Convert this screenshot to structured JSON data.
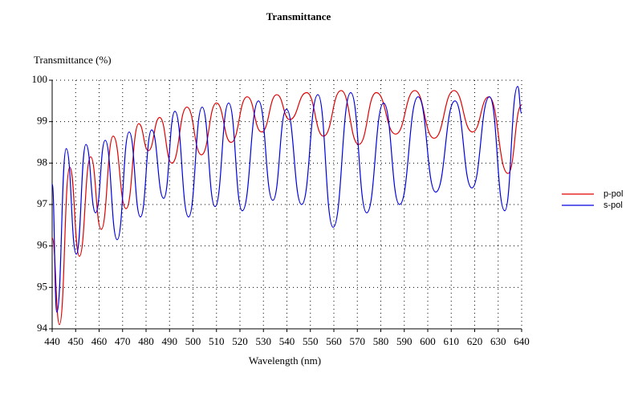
{
  "chart_data": {
    "type": "line",
    "title": "Transmittance",
    "x_label": "Wavelength (nm)",
    "y_label": "Transmittance (%)",
    "xlim": [
      440,
      640
    ],
    "xticks": [
      440,
      450,
      460,
      470,
      480,
      490,
      500,
      510,
      520,
      530,
      540,
      550,
      560,
      570,
      580,
      590,
      600,
      610,
      620,
      630,
      640
    ],
    "ylim": [
      94,
      100
    ],
    "yticks": [
      94,
      95,
      96,
      97,
      98,
      99,
      100
    ],
    "grid": true,
    "legend": "right",
    "series": [
      {
        "name": "p-pol",
        "color": "#e00000",
        "x": [
          440,
          443.1,
          447.5,
          451.6,
          456.4,
          460.9,
          466,
          471.5,
          476.9,
          481,
          485.8,
          491,
          497.4,
          503.6,
          510,
          516.2,
          523.1,
          529.2,
          535.7,
          541.2,
          548.4,
          555.6,
          563.1,
          570.6,
          578.1,
          586.3,
          594.5,
          602.7,
          611.2,
          619.1,
          626,
          634.2,
          640
        ],
        "values": [
          96.2,
          94.1,
          97.9,
          95.75,
          98.15,
          96.4,
          98.65,
          96.9,
          98.95,
          98.3,
          99.1,
          98.0,
          99.35,
          98.2,
          99.45,
          98.5,
          99.6,
          98.75,
          99.65,
          99.05,
          99.7,
          98.65,
          99.75,
          98.45,
          99.7,
          98.7,
          99.75,
          98.6,
          99.75,
          98.75,
          99.6,
          97.75,
          99.4
        ]
      },
      {
        "name": "s-pol",
        "color": "#0000e0",
        "x": [
          440,
          442,
          446,
          450.3,
          454.4,
          458.5,
          462.6,
          467.7,
          472.8,
          477.6,
          482.4,
          487.5,
          492.3,
          498.1,
          503.9,
          509.4,
          515.2,
          521,
          527.9,
          534,
          539.8,
          546.3,
          553.2,
          559.7,
          567.2,
          574,
          581.2,
          588,
          595.9,
          603.4,
          611.6,
          618.8,
          626.3,
          632.8,
          638.3,
          640
        ],
        "values": [
          97.5,
          94.4,
          98.35,
          95.8,
          98.45,
          96.8,
          98.55,
          96.15,
          98.75,
          96.7,
          98.8,
          97.15,
          99.25,
          96.7,
          99.35,
          96.95,
          99.45,
          96.85,
          99.5,
          97.1,
          99.3,
          97.0,
          99.65,
          96.45,
          99.7,
          96.8,
          99.45,
          97.0,
          99.6,
          97.3,
          99.5,
          97.4,
          99.6,
          96.85,
          99.85,
          99.2
        ]
      }
    ]
  }
}
